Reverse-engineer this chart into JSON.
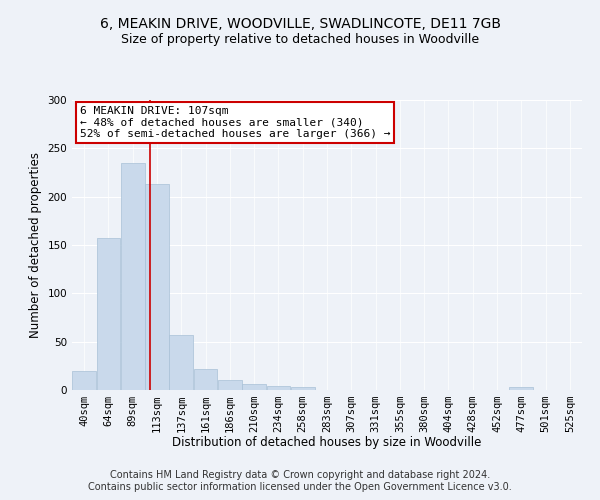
{
  "title": "6, MEAKIN DRIVE, WOODVILLE, SWADLINCOTE, DE11 7GB",
  "subtitle": "Size of property relative to detached houses in Woodville",
  "xlabel": "Distribution of detached houses by size in Woodville",
  "ylabel": "Number of detached properties",
  "bar_values": [
    20,
    157,
    235,
    213,
    57,
    22,
    10,
    6,
    4,
    3,
    0,
    0,
    0,
    0,
    0,
    0,
    0,
    0,
    3,
    0,
    0
  ],
  "bar_labels": [
    "40sqm",
    "64sqm",
    "89sqm",
    "113sqm",
    "137sqm",
    "161sqm",
    "186sqm",
    "210sqm",
    "234sqm",
    "258sqm",
    "283sqm",
    "307sqm",
    "331sqm",
    "355sqm",
    "380sqm",
    "404sqm",
    "428sqm",
    "452sqm",
    "477sqm",
    "501sqm",
    "525sqm"
  ],
  "bar_color": "#c9d9eb",
  "bar_edge_color": "#a8c0d6",
  "ylim": [
    0,
    300
  ],
  "yticks": [
    0,
    50,
    100,
    150,
    200,
    250,
    300
  ],
  "red_line_x": 2.72,
  "annotation_line1": "6 MEAKIN DRIVE: 107sqm",
  "annotation_line2": "← 48% of detached houses are smaller (340)",
  "annotation_line3": "52% of semi-detached houses are larger (366) →",
  "annotation_box_color": "#ffffff",
  "annotation_border_color": "#cc0000",
  "footer_line1": "Contains HM Land Registry data © Crown copyright and database right 2024.",
  "footer_line2": "Contains public sector information licensed under the Open Government Licence v3.0.",
  "bg_color": "#eef2f8",
  "grid_color": "#ffffff",
  "title_fontsize": 10,
  "subtitle_fontsize": 9,
  "axis_label_fontsize": 8.5,
  "tick_fontsize": 7.5,
  "footer_fontsize": 7,
  "annotation_fontsize": 8
}
